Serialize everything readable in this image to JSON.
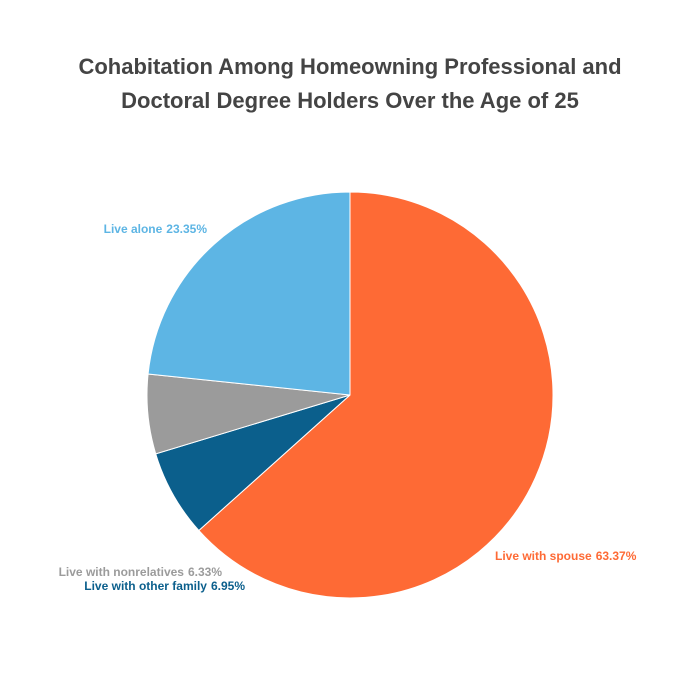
{
  "chart_data": {
    "type": "pie",
    "title": "Cohabitation Among Homeowning Professional and Doctoral Degree Holders Over the Age of 25",
    "categories": [
      "Live with spouse",
      "Live with other family",
      "Live with nonrelatives",
      "Live alone"
    ],
    "values": [
      63.37,
      6.95,
      6.33,
      23.35
    ],
    "value_labels": [
      "63.37%",
      "6.95%",
      "6.33%",
      "23.35%"
    ],
    "colors": [
      "#fe6a35",
      "#0b5f8c",
      "#9b9b9b",
      "#5db5e4"
    ]
  }
}
